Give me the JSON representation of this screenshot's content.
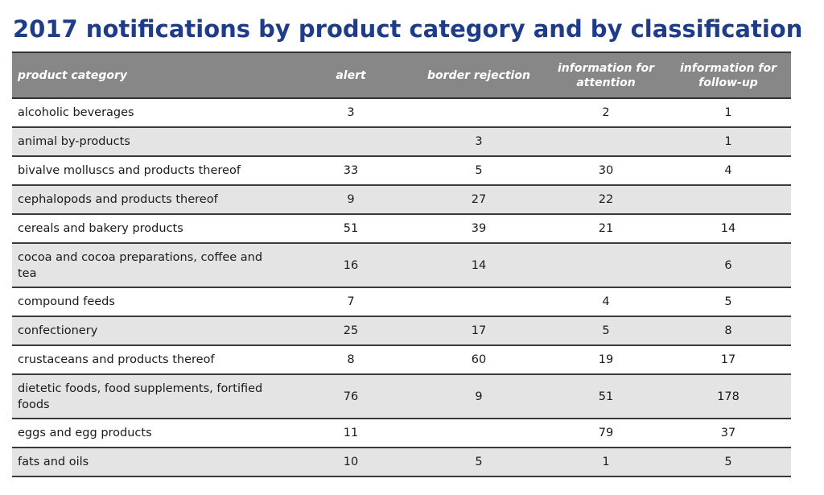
{
  "title": "2017 notifications by product category and by classification",
  "table": {
    "headers": {
      "category": "product category",
      "alert": "alert",
      "border_rejection": "border rejection",
      "info_attention": "information for attention",
      "info_followup": "information for follow-up"
    },
    "rows": [
      {
        "category": "alcoholic beverages",
        "alert": "3",
        "border_rejection": "",
        "info_attention": "2",
        "info_followup": "1"
      },
      {
        "category": "animal by-products",
        "alert": "",
        "border_rejection": "3",
        "info_attention": "",
        "info_followup": "1"
      },
      {
        "category": "bivalve molluscs and products thereof",
        "alert": "33",
        "border_rejection": "5",
        "info_attention": "30",
        "info_followup": "4"
      },
      {
        "category": "cephalopods and products thereof",
        "alert": "9",
        "border_rejection": "27",
        "info_attention": "22",
        "info_followup": ""
      },
      {
        "category": "cereals and bakery products",
        "alert": "51",
        "border_rejection": "39",
        "info_attention": "21",
        "info_followup": "14"
      },
      {
        "category": "cocoa and cocoa preparations, coffee and tea",
        "alert": "16",
        "border_rejection": "14",
        "info_attention": "",
        "info_followup": "6"
      },
      {
        "category": "compound feeds",
        "alert": "7",
        "border_rejection": "",
        "info_attention": "4",
        "info_followup": "5"
      },
      {
        "category": "confectionery",
        "alert": "25",
        "border_rejection": "17",
        "info_attention": "5",
        "info_followup": "8"
      },
      {
        "category": "crustaceans and products thereof",
        "alert": "8",
        "border_rejection": "60",
        "info_attention": "19",
        "info_followup": "17"
      },
      {
        "category": "dietetic foods, food supplements, fortified foods",
        "alert": "76",
        "border_rejection": "9",
        "info_attention": "51",
        "info_followup": "178"
      },
      {
        "category": "eggs and egg products",
        "alert": "11",
        "border_rejection": "",
        "info_attention": "79",
        "info_followup": "37"
      },
      {
        "category": "fats and oils",
        "alert": "10",
        "border_rejection": "5",
        "info_attention": "1",
        "info_followup": "5"
      }
    ]
  },
  "colors": {
    "title": "#1f3c88",
    "header_background": "#878787",
    "row_stripe": "#e4e4e4"
  }
}
